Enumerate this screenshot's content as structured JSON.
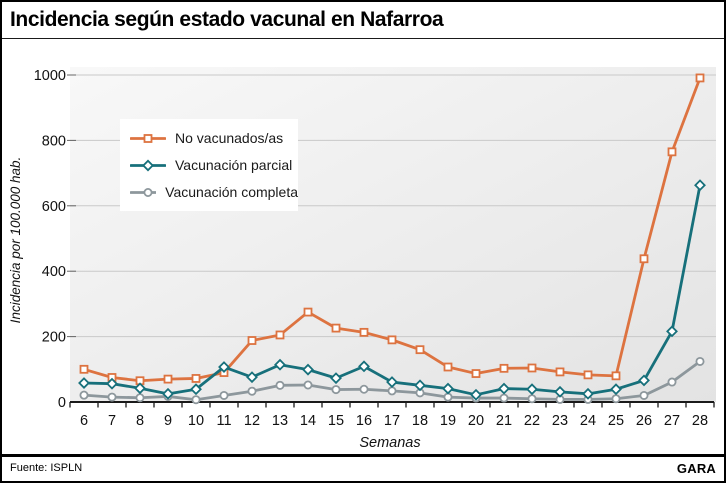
{
  "header": {
    "title": "Incidencia según estado vacunal en Nafarroa"
  },
  "footer": {
    "source": "Fuente: ISPLN",
    "brand": "GARA"
  },
  "colors": {
    "unvaccinated": "#dd7340",
    "partial": "#17707b",
    "complete": "#8d979c",
    "gridline": "#c9c9c9",
    "axis": "#1a1a1a",
    "plot_bg_light": "#f7f7f7",
    "plot_bg_dark": "#e4e4e4"
  },
  "chart_data": {
    "type": "line",
    "title": "Incidencia según estado vacunal en Nafarroa",
    "xlabel": "Semanas",
    "ylabel": "Incidencia por 100.000 hab.",
    "x": [
      6,
      7,
      8,
      9,
      10,
      11,
      12,
      13,
      14,
      15,
      16,
      17,
      18,
      19,
      20,
      21,
      22,
      23,
      24,
      25,
      26,
      27,
      28
    ],
    "ylim": [
      0,
      1000
    ],
    "yticks": [
      0,
      200,
      400,
      600,
      800,
      1000
    ],
    "grid": true,
    "legend_position": "top-left",
    "series": [
      {
        "name": "No vacunados/as",
        "color": "#dd7340",
        "marker": "square",
        "values": [
          100,
          75,
          65,
          70,
          72,
          90,
          188,
          205,
          275,
          226,
          213,
          190,
          160,
          107,
          87,
          103,
          104,
          92,
          83,
          80,
          438,
          765,
          991
        ]
      },
      {
        "name": "Vacunación parcial",
        "color": "#17707b",
        "marker": "diamond",
        "values": [
          58,
          56,
          42,
          25,
          39,
          107,
          76,
          114,
          99,
          73,
          109,
          61,
          51,
          41,
          22,
          41,
          39,
          31,
          25,
          39,
          66,
          216,
          663
        ]
      },
      {
        "name": "Vacunación completa",
        "color": "#8d979c",
        "marker": "circle",
        "values": [
          21,
          15,
          13,
          17,
          7,
          20,
          33,
          51,
          52,
          38,
          39,
          34,
          28,
          15,
          12,
          12,
          10,
          8,
          8,
          10,
          20,
          61,
          124
        ]
      }
    ],
    "z_order": [
      0,
      2,
      1
    ]
  }
}
